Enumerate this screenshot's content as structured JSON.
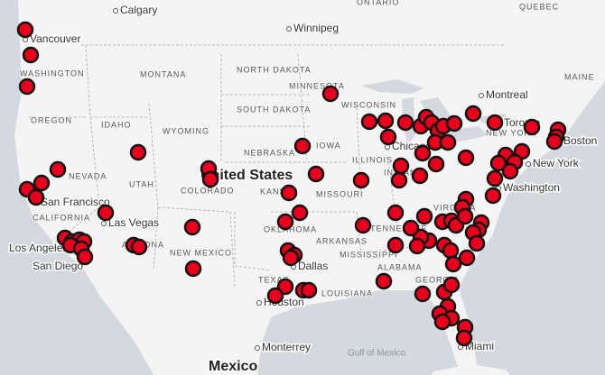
{
  "labels": [
    "Calgary",
    "Winnipeg",
    "ONTARIO",
    "QUEBEC",
    "Vancouver",
    "WASHINGTON",
    "MONTANA",
    "NORTH DAKOTA",
    "SOUTH DAKOTA",
    "MINNESOTA",
    "WISCONSIN",
    "OREGON",
    "IDAHO",
    "WYOMING",
    "NEBRASKA",
    "IOWA",
    "Chicago",
    "Toronto",
    "Montreal",
    "MAINE",
    "Boston",
    "NEW YORK",
    "New York",
    "Washington",
    "NEVADA",
    "UTAH",
    "COLORADO",
    "United States",
    "KANSAS",
    "MISSOURI",
    "ILLINOIS",
    "INDIANA",
    "San Francisco",
    "CALIFORNIA",
    "Las Vegas",
    "ARIZONA",
    "NEW MEXICO",
    "OKLAHOMA",
    "ARKANSAS",
    "TENNESSEE",
    "MISSISSIPPI",
    "ALABAMA",
    "GEORGIA",
    "Dallas",
    "TEXAS",
    "Houston",
    "LOUISIANA",
    "Los Angeles",
    "San Diego",
    "Monterrey",
    "Mexico",
    "Gulf of Mexico",
    "Miami",
    "VIRGINIA"
  ]
}
